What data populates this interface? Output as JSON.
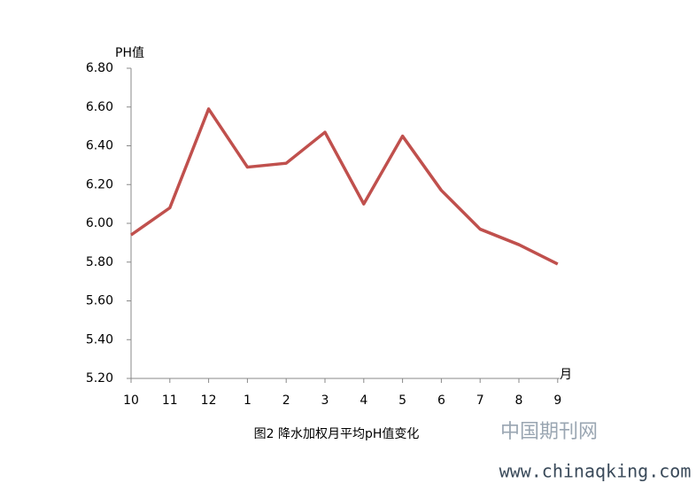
{
  "chart_data": {
    "type": "line",
    "y_label": "PH值",
    "x_label": "月",
    "caption": "图2 降水加权月平均pH值变化",
    "watermark": "中国期刊网",
    "watermark_url": "www.chinaqking.com",
    "categories": [
      "10",
      "11",
      "12",
      "1",
      "2",
      "3",
      "4",
      "5",
      "6",
      "7",
      "8",
      "9"
    ],
    "values": [
      5.94,
      6.08,
      6.59,
      6.29,
      6.31,
      6.47,
      6.1,
      6.45,
      6.17,
      5.97,
      5.89,
      5.79
    ],
    "color": "#c0504d",
    "ylim": [
      5.2,
      6.8
    ],
    "yticks": [
      {
        "value": 5.2,
        "label": "5.20"
      },
      {
        "value": 5.4,
        "label": "5.40"
      },
      {
        "value": 5.6,
        "label": "5.60"
      },
      {
        "value": 5.8,
        "label": "5.80"
      },
      {
        "value": 6.0,
        "label": "6.00"
      },
      {
        "value": 6.2,
        "label": "6.20"
      },
      {
        "value": 6.4,
        "label": "6.40"
      },
      {
        "value": 6.6,
        "label": "6.60"
      },
      {
        "value": 6.8,
        "label": "6.80"
      }
    ],
    "grid": false
  }
}
